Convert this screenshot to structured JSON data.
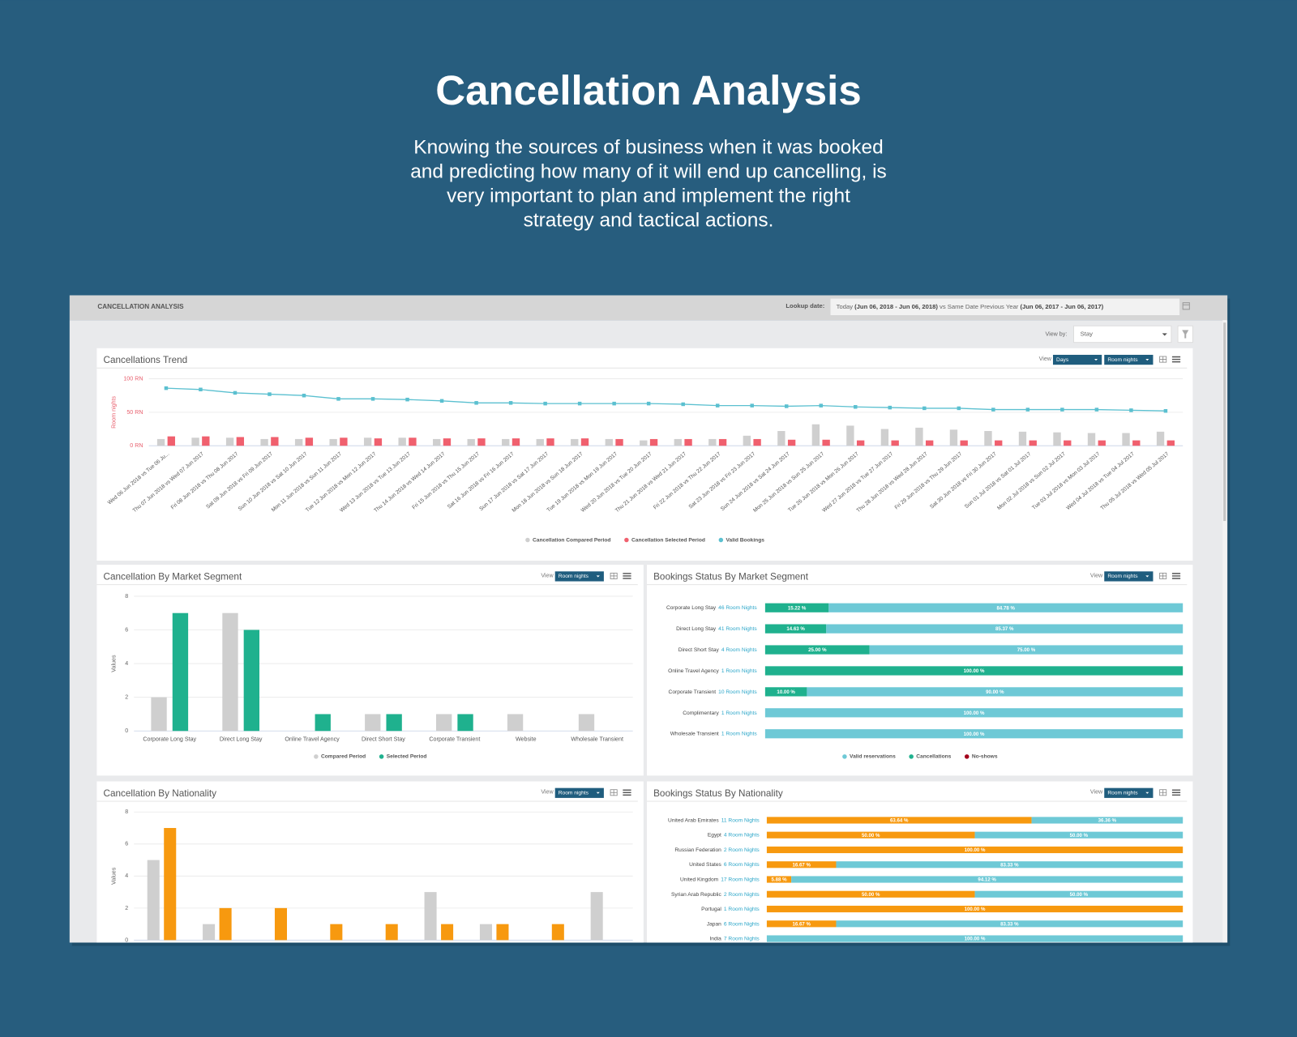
{
  "header": {
    "title": "Cancellation Analysis",
    "description": [
      "Knowing the sources of business when it was booked",
      "and predicting how many of it will end up cancelling, is",
      "very important to plan and implement the right",
      "strategy and tactical actions."
    ]
  },
  "dashboard": {
    "title": "CANCELLATION ANALYSIS",
    "lookup_label": "Lookup date:",
    "lookup_value": [
      "Today",
      "(Jun 06, 2018 - Jun 06, 2018)",
      "vs Same Date Previous Year",
      "(Jun 06, 2017 - Jun 06, 2017)"
    ],
    "view_by_label": "View by:",
    "view_by_value": "Stay"
  },
  "chart_data": [
    {
      "type": "bar-line",
      "title": "Cancellations Trend",
      "controls": {
        "view_label": "View",
        "options": [
          "Days",
          "Room nights"
        ]
      },
      "y_label": "Room nights",
      "axis_color": "#e8606e",
      "ylim": [
        0,
        100
      ],
      "yticks": [
        {
          "value": 0,
          "label": "0 RN"
        },
        {
          "value": 50,
          "label": "50 RN"
        },
        {
          "value": 100,
          "label": "100 RN"
        }
      ],
      "grid": true,
      "categories": [
        "Wed 06 Jun 2018 vs Tue 06 Ju...",
        "Thu 07 Jun 2018 vs Wed 07 Jun 2017",
        "Fri 08 Jun 2018 vs Thu 08 Jun 2017",
        "Sat 09 Jun 2018 vs Fri 09 Jun 2017",
        "Sun 10 Jun 2018 vs Sat 10 Jun 2017",
        "Mon 11 Jun 2018 vs Sun 11 Jun 2017",
        "Tue 12 Jun 2018 vs Mon 12 Jun 2017",
        "Wed 13 Jun 2018 vs Tue 13 Jun 2017",
        "Thu 14 Jun 2018 vs Wed 14 Jun 2017",
        "Fri 15 Jun 2018 vs Thu 15 Jun 2017",
        "Sat 16 Jun 2018 vs Fri 16 Jun 2017",
        "Sun 17 Jun 2018 vs Sat 17 Jun 2017",
        "Mon 18 Jun 2018 vs Sun 18 Jun 2017",
        "Tue 19 Jun 2018 vs Mon 19 Jun 2017",
        "Wed 20 Jun 2018 vs Tue 20 Jun 2017",
        "Thu 21 Jun 2018 vs Wed 21 Jun 2017",
        "Fri 22 Jun 2018 vs Thu 22 Jun 2017",
        "Sat 23 Jun 2018 vs Fri 23 Jun 2017",
        "Sun 24 Jun 2018 vs Sat 24 Jun 2017",
        "Mon 25 Jun 2018 vs Sun 25 Jun 2017",
        "Tue 26 Jun 2018 vs Mon 26 Jun 2017",
        "Wed 27 Jun 2018 vs Tue 27 Jun 2017",
        "Thu 28 Jun 2018 vs Wed 28 Jun 2017",
        "Fri 29 Jun 2018 vs Thu 29 Jun 2017",
        "Sat 30 Jun 2018 vs Fri 30 Jun 2017",
        "Sun 01 Jul 2018 vs Sat 01 Jul 2017",
        "Mon 02 Jul 2018 vs Sun 02 Jul 2017",
        "Tue 03 Jul 2018 vs Mon 03 Jul 2017",
        "Wed 04 Jul 2018 vs Tue 04 Jul 2017",
        "Thu 05 Jul 2018 vs Wed 05 Jul 2017"
      ],
      "series": [
        {
          "name": "Cancellation Compared Period",
          "type": "bar",
          "color": "#cfcfcf",
          "values": [
            10,
            12,
            12,
            10,
            10,
            10,
            12,
            12,
            10,
            10,
            10,
            10,
            10,
            10,
            8,
            10,
            10,
            15,
            22,
            32,
            30,
            25,
            27,
            24,
            22,
            21,
            20,
            19,
            19,
            21
          ]
        },
        {
          "name": "Cancellation Selected Period",
          "type": "bar",
          "color": "#f0606e",
          "values": [
            14,
            14,
            13,
            13,
            12,
            12,
            11,
            12,
            11,
            11,
            11,
            11,
            11,
            10,
            10,
            10,
            10,
            10,
            9,
            9,
            8,
            8,
            8,
            8,
            8,
            8,
            8,
            8,
            8,
            8
          ]
        },
        {
          "name": "Valid Bookings",
          "type": "line",
          "color": "#5bc0d0",
          "values": [
            86,
            84,
            79,
            77,
            75,
            70,
            70,
            69,
            67,
            64,
            64,
            63,
            63,
            63,
            63,
            62,
            60,
            60,
            59,
            60,
            58,
            57,
            56,
            56,
            54,
            54,
            54,
            54,
            53,
            52
          ]
        }
      ]
    },
    {
      "type": "bar",
      "title": "Cancellation By Market Segment",
      "controls": {
        "view_label": "View",
        "options": [
          "Room nights"
        ]
      },
      "y_label": "Values",
      "ylim": [
        0,
        8
      ],
      "yticks": [
        0,
        2,
        4,
        6,
        8
      ],
      "grid": true,
      "categories": [
        "Corporate Long Stay",
        "Direct Long Stay",
        "Online Travel Agency",
        "Direct Short Stay",
        "Corporate Transient",
        "Website",
        "Wholesale Transient"
      ],
      "series": [
        {
          "name": "Compared Period",
          "color": "#cfcfcf",
          "values": [
            2,
            7,
            null,
            1,
            1,
            1,
            1
          ]
        },
        {
          "name": "Selected Period",
          "color": "#1fb18e",
          "values": [
            7,
            6,
            1,
            1,
            1,
            null,
            null
          ]
        }
      ]
    },
    {
      "type": "stacked-hbar",
      "title": "Bookings Status By Market Segment",
      "controls": {
        "view_label": "View",
        "options": [
          "Room nights"
        ]
      },
      "xlim": [
        0,
        100
      ],
      "categories": [
        "Corporate Long Stay",
        "Direct Long Stay",
        "Direct Short Stay",
        "Online Travel Agency",
        "Corporate Transient",
        "Complimentary",
        "Wholesale Transient"
      ],
      "category_notes": [
        "46 Room Nights",
        "41 Room Nights",
        "4 Room Nights",
        "1 Room Nights",
        "10 Room Nights",
        "1 Room Nights",
        "1 Room Nights"
      ],
      "series": [
        {
          "name": "Valid reservations",
          "color": "#6ec9d6",
          "values": [
            84.78,
            85.37,
            75.0,
            0,
            90.0,
            100.0,
            100.0
          ],
          "value_labels": [
            "84.78 %",
            "85.37 %",
            "75.00 %",
            null,
            "90.00 %",
            "100.00 %",
            "100.00 %"
          ]
        },
        {
          "name": "Cancellations",
          "color": "#1fb18e",
          "values": [
            15.22,
            14.63,
            25.0,
            100.0,
            10.0,
            0,
            0
          ],
          "value_labels": [
            "15.22 %",
            "14.63 %",
            "25.00 %",
            "100.00 %",
            "10.00 %",
            null,
            null
          ]
        },
        {
          "name": "No-shows",
          "color": "#a3001b",
          "values": [
            0,
            0,
            0,
            0,
            0,
            0,
            0
          ]
        }
      ]
    },
    {
      "type": "bar",
      "title": "Cancellation By Nationality",
      "controls": {
        "view_label": "View",
        "options": [
          "Room nights"
        ]
      },
      "y_label": "Values",
      "ylim": [
        0,
        8
      ],
      "yticks": [
        0,
        2,
        4,
        6,
        8
      ],
      "grid": true,
      "categories": [
        null,
        null,
        null,
        null,
        null,
        null,
        null,
        null,
        null
      ],
      "series": [
        {
          "color": "#cfcfcf",
          "values": [
            5,
            1,
            null,
            null,
            null,
            3,
            1,
            null,
            3
          ]
        },
        {
          "color": "#f7990f",
          "values": [
            7,
            2,
            2,
            1,
            1,
            1,
            1,
            1,
            null
          ]
        }
      ]
    },
    {
      "type": "stacked-hbar",
      "title": "Bookings Status By Nationality",
      "controls": {
        "view_label": "View",
        "options": [
          "Room nights"
        ]
      },
      "xlim": [
        0,
        100
      ],
      "categories": [
        "United Arab Emirates",
        "Egypt",
        "Russian Federation",
        "United States",
        "United Kingdom",
        "Syrian Arab Republic",
        "Portugal",
        "Japan",
        "India"
      ],
      "category_notes": [
        "11 Room Nights",
        "4 Room Nights",
        "2 Room Nights",
        "6 Room Nights",
        "17 Room Nights",
        "2 Room Nights",
        "1 Room Nights",
        "6 Room Nights",
        "7 Room Nights"
      ],
      "series": [
        {
          "color": "#6ec9d6",
          "values": [
            36.36,
            50.0,
            0,
            83.33,
            94.12,
            50.0,
            0,
            83.33,
            100.0
          ],
          "value_labels": [
            "36.36 %",
            "50.00 %",
            null,
            "83.33 %",
            "94.12 %",
            "50.00 %",
            null,
            "83.33 %",
            "100.00 %"
          ]
        },
        {
          "color": "#f7990f",
          "values": [
            63.64,
            50.0,
            100.0,
            16.67,
            5.88,
            50.0,
            100.0,
            16.67,
            0
          ],
          "value_labels": [
            "63.64 %",
            "50.00 %",
            "100.00 %",
            "16.67 %",
            "5.88 %",
            "50.00 %",
            "100.00 %",
            "16.67 %",
            null
          ]
        }
      ]
    }
  ]
}
